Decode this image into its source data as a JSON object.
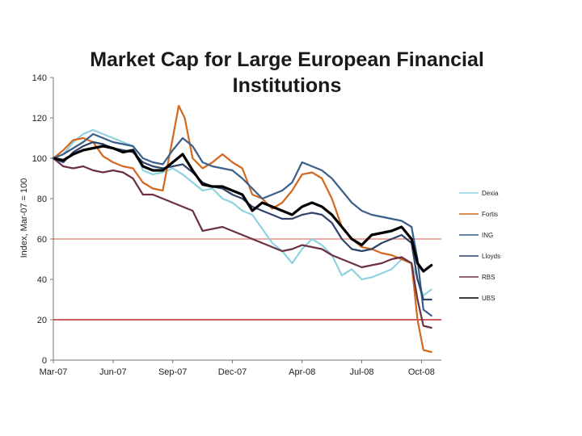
{
  "chart_data": {
    "type": "line",
    "title_lines": [
      "Market Cap for Large European Financial",
      "Institutions"
    ],
    "ylabel": "Index, Mar-07 = 100",
    "xlabel": "",
    "ylim": [
      0,
      140
    ],
    "xlim": [
      0,
      19.5
    ],
    "yticks": [
      0,
      20,
      40,
      60,
      80,
      100,
      120,
      140
    ],
    "xticks": [
      {
        "label": "Mar-07",
        "x": 0
      },
      {
        "label": "Jun-07",
        "x": 3
      },
      {
        "label": "Sep-07",
        "x": 6
      },
      {
        "label": "Dec-07",
        "x": 9
      },
      {
        "label": "Apr-08",
        "x": 12.5
      },
      {
        "label": "Jul-08",
        "x": 15.5
      },
      {
        "label": "Oct-08",
        "x": 18.5
      }
    ],
    "reference_lines": [
      {
        "y": 60,
        "color": "#e8908a"
      },
      {
        "y": 20,
        "color": "#c0282a"
      }
    ],
    "legend_position": "right",
    "series": [
      {
        "name": "Dexia",
        "color": "#8fd3e0",
        "width": 2.2,
        "points": [
          [
            0,
            100
          ],
          [
            0.5,
            102
          ],
          [
            1,
            108
          ],
          [
            1.5,
            112
          ],
          [
            2,
            114
          ],
          [
            2.5,
            112
          ],
          [
            3,
            110
          ],
          [
            3.5,
            108
          ],
          [
            4,
            106
          ],
          [
            4.5,
            94
          ],
          [
            5,
            92
          ],
          [
            5.5,
            93
          ],
          [
            6,
            95
          ],
          [
            6.5,
            92
          ],
          [
            7,
            88
          ],
          [
            7.5,
            84
          ],
          [
            8,
            85
          ],
          [
            8.5,
            80
          ],
          [
            9,
            78
          ],
          [
            9.5,
            74
          ],
          [
            10,
            72
          ],
          [
            10.5,
            65
          ],
          [
            11,
            58
          ],
          [
            11.5,
            54
          ],
          [
            12,
            48
          ],
          [
            12.5,
            55
          ],
          [
            13,
            60
          ],
          [
            13.5,
            57
          ],
          [
            14,
            52
          ],
          [
            14.5,
            42
          ],
          [
            15,
            45
          ],
          [
            15.5,
            40
          ],
          [
            16,
            41
          ],
          [
            16.5,
            43
          ],
          [
            17,
            45
          ],
          [
            17.5,
            50
          ],
          [
            18,
            48
          ],
          [
            18.3,
            40
          ],
          [
            18.6,
            32
          ],
          [
            19,
            35
          ]
        ]
      },
      {
        "name": "Fortis",
        "color": "#d2691e",
        "width": 2.2,
        "points": [
          [
            0,
            100
          ],
          [
            0.5,
            104
          ],
          [
            1,
            109
          ],
          [
            1.5,
            110
          ],
          [
            2,
            108
          ],
          [
            2.5,
            101
          ],
          [
            3,
            98
          ],
          [
            3.5,
            96
          ],
          [
            4,
            95
          ],
          [
            4.5,
            88
          ],
          [
            5,
            85
          ],
          [
            5.5,
            84
          ],
          [
            6,
            110
          ],
          [
            6.3,
            126
          ],
          [
            6.6,
            120
          ],
          [
            7,
            100
          ],
          [
            7.5,
            95
          ],
          [
            8,
            98
          ],
          [
            8.5,
            102
          ],
          [
            9,
            98
          ],
          [
            9.5,
            95
          ],
          [
            10,
            82
          ],
          [
            10.5,
            80
          ],
          [
            11,
            75
          ],
          [
            11.5,
            78
          ],
          [
            12,
            84
          ],
          [
            12.5,
            92
          ],
          [
            13,
            93
          ],
          [
            13.5,
            90
          ],
          [
            14,
            80
          ],
          [
            14.5,
            66
          ],
          [
            15,
            60
          ],
          [
            15.5,
            56
          ],
          [
            16,
            55
          ],
          [
            16.5,
            53
          ],
          [
            17,
            52
          ],
          [
            17.5,
            50
          ],
          [
            18,
            48
          ],
          [
            18.3,
            20
          ],
          [
            18.6,
            5
          ],
          [
            19,
            4
          ]
        ]
      },
      {
        "name": "ING",
        "color": "#3a5f8a",
        "width": 2.2,
        "points": [
          [
            0,
            100
          ],
          [
            0.5,
            102
          ],
          [
            1,
            105
          ],
          [
            1.5,
            108
          ],
          [
            2,
            112
          ],
          [
            2.5,
            110
          ],
          [
            3,
            108
          ],
          [
            3.5,
            107
          ],
          [
            4,
            106
          ],
          [
            4.5,
            100
          ],
          [
            5,
            98
          ],
          [
            5.5,
            97
          ],
          [
            6,
            104
          ],
          [
            6.5,
            110
          ],
          [
            7,
            106
          ],
          [
            7.5,
            98
          ],
          [
            8,
            96
          ],
          [
            8.5,
            95
          ],
          [
            9,
            94
          ],
          [
            9.5,
            90
          ],
          [
            10,
            85
          ],
          [
            10.5,
            80
          ],
          [
            11,
            82
          ],
          [
            11.5,
            84
          ],
          [
            12,
            88
          ],
          [
            12.5,
            98
          ],
          [
            13,
            96
          ],
          [
            13.5,
            94
          ],
          [
            14,
            90
          ],
          [
            14.5,
            84
          ],
          [
            15,
            78
          ],
          [
            15.5,
            74
          ],
          [
            16,
            72
          ],
          [
            16.5,
            71
          ],
          [
            17,
            70
          ],
          [
            17.5,
            69
          ],
          [
            18,
            66
          ],
          [
            18.3,
            50
          ],
          [
            18.6,
            25
          ],
          [
            19,
            22
          ]
        ]
      },
      {
        "name": "Lloyds",
        "color": "#2f4468",
        "width": 2.2,
        "points": [
          [
            0,
            100
          ],
          [
            0.5,
            98
          ],
          [
            1,
            103
          ],
          [
            1.5,
            106
          ],
          [
            2,
            108
          ],
          [
            2.5,
            107
          ],
          [
            3,
            105
          ],
          [
            3.5,
            104
          ],
          [
            4,
            103
          ],
          [
            4.5,
            98
          ],
          [
            5,
            96
          ],
          [
            5.5,
            95
          ],
          [
            6,
            96
          ],
          [
            6.5,
            97
          ],
          [
            7,
            93
          ],
          [
            7.5,
            88
          ],
          [
            8,
            86
          ],
          [
            8.5,
            85
          ],
          [
            9,
            82
          ],
          [
            9.5,
            80
          ],
          [
            10,
            76
          ],
          [
            10.5,
            74
          ],
          [
            11,
            72
          ],
          [
            11.5,
            70
          ],
          [
            12,
            70
          ],
          [
            12.5,
            72
          ],
          [
            13,
            73
          ],
          [
            13.5,
            72
          ],
          [
            14,
            68
          ],
          [
            14.5,
            60
          ],
          [
            15,
            55
          ],
          [
            15.5,
            54
          ],
          [
            16,
            55
          ],
          [
            16.5,
            58
          ],
          [
            17,
            60
          ],
          [
            17.5,
            62
          ],
          [
            18,
            58
          ],
          [
            18.3,
            40
          ],
          [
            18.6,
            30
          ],
          [
            19,
            30
          ]
        ]
      },
      {
        "name": "RBS",
        "color": "#6b3044",
        "width": 2.2,
        "points": [
          [
            0,
            100
          ],
          [
            0.5,
            96
          ],
          [
            1,
            95
          ],
          [
            1.5,
            96
          ],
          [
            2,
            94
          ],
          [
            2.5,
            93
          ],
          [
            3,
            94
          ],
          [
            3.5,
            93
          ],
          [
            4,
            90
          ],
          [
            4.5,
            82
          ],
          [
            5,
            82
          ],
          [
            5.5,
            80
          ],
          [
            6,
            78
          ],
          [
            6.5,
            76
          ],
          [
            7,
            74
          ],
          [
            7.5,
            64
          ],
          [
            8,
            65
          ],
          [
            8.5,
            66
          ],
          [
            9,
            64
          ],
          [
            9.5,
            62
          ],
          [
            10,
            60
          ],
          [
            10.5,
            58
          ],
          [
            11,
            56
          ],
          [
            11.5,
            54
          ],
          [
            12,
            55
          ],
          [
            12.5,
            57
          ],
          [
            13,
            56
          ],
          [
            13.5,
            55
          ],
          [
            14,
            52
          ],
          [
            14.5,
            50
          ],
          [
            15,
            48
          ],
          [
            15.5,
            46
          ],
          [
            16,
            47
          ],
          [
            16.5,
            48
          ],
          [
            17,
            50
          ],
          [
            17.5,
            51
          ],
          [
            18,
            48
          ],
          [
            18.3,
            30
          ],
          [
            18.6,
            17
          ],
          [
            19,
            16
          ]
        ]
      },
      {
        "name": "UBS",
        "color": "#000000",
        "width": 3.2,
        "points": [
          [
            0,
            100
          ],
          [
            0.5,
            99
          ],
          [
            1,
            102
          ],
          [
            1.5,
            104
          ],
          [
            2,
            105
          ],
          [
            2.5,
            106
          ],
          [
            3,
            105
          ],
          [
            3.5,
            103
          ],
          [
            4,
            104
          ],
          [
            4.5,
            96
          ],
          [
            5,
            94
          ],
          [
            5.5,
            94
          ],
          [
            6,
            98
          ],
          [
            6.5,
            102
          ],
          [
            7,
            94
          ],
          [
            7.5,
            87
          ],
          [
            8,
            86
          ],
          [
            8.5,
            86
          ],
          [
            9,
            84
          ],
          [
            9.5,
            82
          ],
          [
            10,
            74
          ],
          [
            10.5,
            78
          ],
          [
            11,
            76
          ],
          [
            11.5,
            74
          ],
          [
            12,
            72
          ],
          [
            12.5,
            76
          ],
          [
            13,
            78
          ],
          [
            13.5,
            76
          ],
          [
            14,
            72
          ],
          [
            14.5,
            66
          ],
          [
            15,
            60
          ],
          [
            15.5,
            57
          ],
          [
            16,
            62
          ],
          [
            16.5,
            63
          ],
          [
            17,
            64
          ],
          [
            17.5,
            66
          ],
          [
            18,
            60
          ],
          [
            18.3,
            48
          ],
          [
            18.6,
            44
          ],
          [
            19,
            47
          ]
        ]
      }
    ]
  }
}
